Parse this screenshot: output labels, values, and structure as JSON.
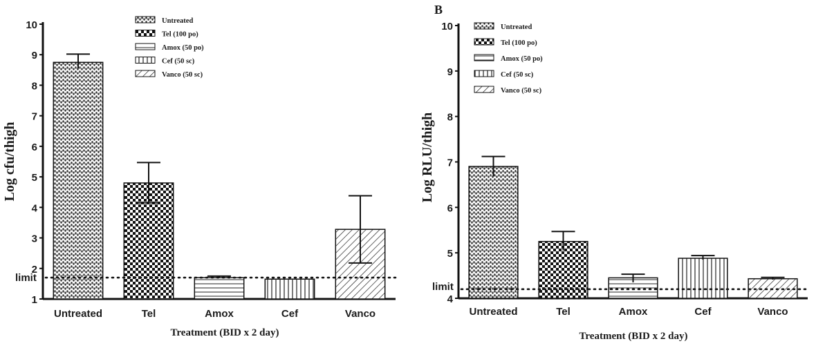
{
  "chart_data": [
    {
      "type": "bar",
      "panel_label": "",
      "categories": [
        "Untreated",
        "Tel",
        "Amox",
        "Cef",
        "Vanco"
      ],
      "values": [
        8.75,
        4.8,
        1.7,
        1.65,
        3.28
      ],
      "error_upper": [
        0.27,
        0.67,
        0.05,
        0.0,
        1.1
      ],
      "error_lower": [
        0.2,
        0.65,
        0.0,
        0.0,
        1.1
      ],
      "ylabel": "Log cfu/thigh",
      "xlabel": "Treatment (BID x 2 day)",
      "ylim": [
        1,
        10
      ],
      "yticks": [
        "1",
        "2",
        "3",
        "4",
        "5",
        "6",
        "7",
        "8",
        "9",
        "10"
      ],
      "limit_value": 1.7,
      "limit_label": "limit",
      "legend": [
        "Untreated",
        "Tel (100 po)",
        "Amox (50 po)",
        "Cef (50 sc)",
        "Vanco (50 sc)"
      ],
      "legend_position": "top-right",
      "grid": false
    },
    {
      "type": "bar",
      "panel_label": "B",
      "categories": [
        "Untreated",
        "Tel",
        "Amox",
        "Cef",
        "Vanco"
      ],
      "values": [
        6.9,
        5.25,
        4.45,
        4.88,
        4.43
      ],
      "error_upper": [
        0.22,
        0.22,
        0.08,
        0.06,
        0.03
      ],
      "error_lower": [
        0.22,
        0.2,
        0.1,
        0.03,
        0.02
      ],
      "ylabel": "Log RLU/thigh",
      "xlabel": "Treatment (BID x 2 day)",
      "ylim": [
        4,
        10
      ],
      "yticks": [
        "4",
        "5",
        "6",
        "7",
        "8",
        "9",
        "10"
      ],
      "limit_value": 4.2,
      "limit_label": "limit",
      "legend": [
        "Untreated",
        "Tel (100 po)",
        "Amox (50 po)",
        "Cef (50 sc)",
        "Vanco (50 sc)"
      ],
      "legend_position": "top-left",
      "grid": false
    }
  ],
  "patterns": [
    "dense-dots",
    "checker",
    "horizontal-lines",
    "vertical-lines",
    "diagonal-lines"
  ]
}
